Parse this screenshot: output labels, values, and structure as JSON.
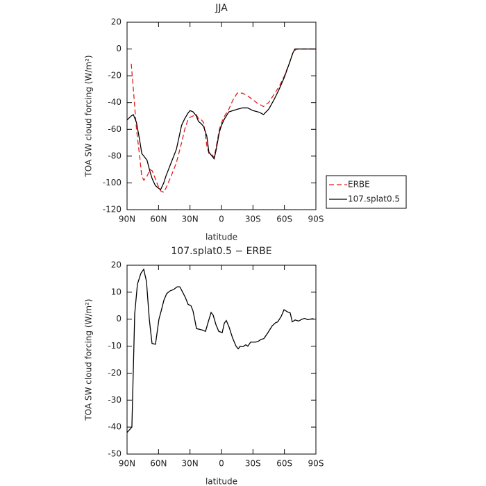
{
  "chart_data": [
    {
      "type": "line",
      "title": "JJA",
      "xlabel": "latitude",
      "ylabel": "TOA SW cloud forcing (W/m²)",
      "x": [
        90,
        86,
        84,
        81,
        78,
        76,
        74,
        71,
        68,
        66,
        63,
        60,
        58,
        55,
        53,
        48,
        43,
        38,
        35,
        32,
        30,
        27,
        24,
        22,
        19,
        17,
        14,
        12,
        9,
        7,
        5,
        2,
        0,
        -3,
        -7,
        -11,
        -15,
        -20,
        -25,
        -30,
        -35,
        -38,
        -40,
        -45,
        -50,
        -55,
        -60,
        -65,
        -68,
        -70,
        -72,
        -80,
        -85,
        -90
      ],
      "series": [
        {
          "name": "ERBE",
          "color": "#e41a1c",
          "linestyle": "dashed",
          "values": [
            null,
            -11,
            -30,
            -60,
            -80,
            -95,
            -98,
            -95,
            -90,
            -91,
            -97,
            -103,
            -106,
            -107,
            -104,
            -95,
            -85,
            -70,
            -60,
            -53,
            -51,
            -50,
            -49,
            -52,
            -53,
            -55,
            -72,
            -78,
            -79,
            -81,
            -73,
            -60,
            -55,
            -50,
            -45,
            -38,
            -33,
            -33,
            -35,
            -38,
            -41,
            -42,
            -43,
            -40,
            -34,
            -28,
            -20,
            -10,
            -3,
            -1,
            0,
            0,
            0,
            0
          ]
        },
        {
          "name": "107.splat0.5",
          "color": "#000000",
          "linestyle": "solid",
          "values": [
            -53,
            -50,
            -49,
            -55,
            -68,
            -78,
            -80,
            -83,
            -92,
            -97,
            -102,
            -104,
            -105,
            -100,
            -95,
            -85,
            -75,
            -57,
            -52,
            -48,
            -46,
            -47,
            -50,
            -54,
            -56,
            -58,
            -65,
            -77,
            -80,
            -82,
            -75,
            -62,
            -57,
            -52,
            -47,
            -46,
            -45,
            -44,
            -44,
            -46,
            -47,
            -48,
            -49,
            -45,
            -38,
            -30,
            -21,
            -10,
            -3,
            0,
            0,
            0,
            0,
            0
          ]
        }
      ],
      "xlim": [
        90,
        -90
      ],
      "xticks": [
        {
          "value": 90,
          "label": "90N"
        },
        {
          "value": 60,
          "label": "60N"
        },
        {
          "value": 30,
          "label": "30N"
        },
        {
          "value": 0,
          "label": "0"
        },
        {
          "value": -30,
          "label": "30S"
        },
        {
          "value": -60,
          "label": "60S"
        },
        {
          "value": -90,
          "label": "90S"
        }
      ],
      "ylim": [
        -120,
        20
      ],
      "yticks": [
        -120,
        -100,
        -80,
        -60,
        -40,
        -20,
        0,
        20
      ],
      "legend": "right"
    },
    {
      "type": "line",
      "title": "107.splat0.5 − ERBE",
      "xlabel": "latitude",
      "ylabel": "TOA SW cloud forcing (W/m²)",
      "x": [
        90,
        85.4,
        82.7,
        80.1,
        76.8,
        74.1,
        71.5,
        68.8,
        66.2,
        62.9,
        59.6,
        57.5,
        54.9,
        52.2,
        48.9,
        45.6,
        42.3,
        39.7,
        37,
        34.4,
        31.8,
        29.1,
        27.1,
        23.8,
        18.5,
        15.2,
        12.6,
        9.9,
        7.9,
        5.3,
        2.6,
        -0.7,
        -2.7,
        -4.6,
        -7.3,
        -10.6,
        -13.9,
        -15.9,
        -17.9,
        -20.5,
        -23.2,
        -25.1,
        -27.8,
        -32.4,
        -35.1,
        -37.7,
        -40.4,
        -44.3,
        -48.3,
        -51.6,
        -53.6,
        -56.9,
        -59.6,
        -62.9,
        -65.5,
        -67.5,
        -70.2,
        -73.5,
        -76.8,
        -79.4,
        -82.1,
        -84.7,
        -86.7,
        -88
      ],
      "values": [
        -42,
        -40,
        2,
        13,
        17,
        18.5,
        14,
        0,
        -9,
        -9.3,
        0,
        3,
        7,
        9.5,
        10.5,
        11,
        12,
        12,
        10,
        8,
        5.5,
        5,
        3,
        -3.5,
        -4,
        -4.5,
        -1,
        2.5,
        1.5,
        -2,
        -4.5,
        -5,
        -1.5,
        -0.5,
        -3,
        -7,
        -10,
        -11,
        -10,
        -10.2,
        -9.5,
        -10,
        -8.5,
        -8.5,
        -8.2,
        -7.5,
        -7.2,
        -5,
        -2.5,
        -1.3,
        -1,
        1,
        3.5,
        2.7,
        2.3,
        -1,
        -0.3,
        -0.7,
        0,
        0.3,
        -0.2,
        0,
        0.2,
        0
      ],
      "color": "#000000",
      "xlim": [
        90,
        -90
      ],
      "xticks": [
        {
          "value": 90,
          "label": "90N"
        },
        {
          "value": 60,
          "label": "60N"
        },
        {
          "value": 30,
          "label": "30N"
        },
        {
          "value": 0,
          "label": "0"
        },
        {
          "value": -30,
          "label": "30S"
        },
        {
          "value": -60,
          "label": "60S"
        },
        {
          "value": -90,
          "label": "90S"
        }
      ],
      "ylim": [
        -50,
        20
      ],
      "yticks": [
        -50,
        -40,
        -30,
        -20,
        -10,
        0,
        10,
        20
      ]
    }
  ]
}
